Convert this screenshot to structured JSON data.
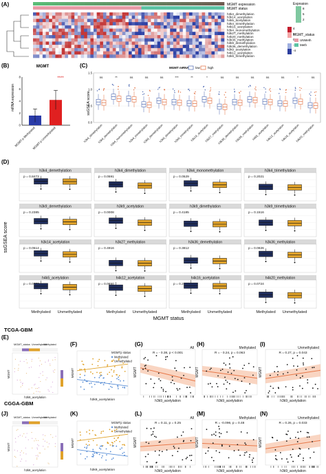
{
  "panel_letters": {
    "A": "(A)",
    "B": "(B)",
    "C": "(C)",
    "D": "(D)",
    "E": "(E)",
    "F": "(F)",
    "G": "(G)",
    "H": "(H)",
    "I": "(I)",
    "J": "(J)",
    "K": "(K)",
    "L": "(L)",
    "M": "(M)",
    "N": "(N)"
  },
  "section_labels": {
    "tcga": "TCGA-GBM",
    "cgga": "CGGA-GBM"
  },
  "colors": {
    "meth": "#1f2d5c",
    "unmeth": "#e0a22a",
    "low": "#4a66b0",
    "high": "#e06b3a",
    "teal": "#5cc3a4",
    "heat_hi": "#c41b2c",
    "heat_lo": "#2b3d9e",
    "red_bar": "#e02020",
    "blue_bar": "#2a3ba8",
    "scatter_pt": "#111111",
    "fit": "#e8794a",
    "fit_band": "#f6c3a8"
  },
  "heatmap": {
    "annotation_labels": [
      "MGMT expression",
      "MGMT status"
    ],
    "rows": [
      "h3k4_dimethylation",
      "h3k14_acetylation",
      "h4k5_acetylation",
      "h3k4_trimethylation",
      "h4k16_acetylation",
      "h3k4_monomethylation",
      "h3k27_methylation",
      "h4k20_methylation",
      "h3k36_methylation",
      "h3k9_demethylation",
      "h3k36_demethylation",
      "h3k9_acetylation",
      "h4k12_acetylation",
      "h3k9_trimethylation"
    ],
    "legend_expr_title": "Exprssion",
    "legend_expr_ticks": [
      "8",
      "5",
      "2"
    ],
    "legend_heat_ticks": [
      "4",
      "2",
      "0",
      "-2",
      "-4"
    ],
    "legend_status_title": "MGMT_status",
    "legend_status_items": [
      "UNMeth",
      "Meth"
    ]
  },
  "chart_data": [
    {
      "panel": "B",
      "type": "bar",
      "title": "MGMT",
      "ylabel": "mRNA expression",
      "categories": [
        "MGMT-p-Methylated",
        "MGMT-p-Unmethylated"
      ],
      "values": [
        1.6,
        4.2
      ],
      "errors": [
        1.1,
        1.6
      ],
      "ylim": [
        0,
        8
      ],
      "yticks": [
        "0",
        "2",
        "4",
        "6",
        "8"
      ],
      "significance": "****"
    },
    {
      "panel": "C",
      "type": "box",
      "ylabel": "ssGSEA score",
      "legend_title": "MGMT mRNA",
      "legend_items": [
        "low",
        "high"
      ],
      "categories": [
        "h3k4_dimethylation",
        "h3k4_demethylation",
        "h3k4_monomethylation",
        "h3k4_trimethylation",
        "h3k9_demethylation",
        "h3k9_dimethylation",
        "h3k9_trimethylation",
        "h3k14_acetylation",
        "h3k27_methylation",
        "h3k36_demethylation",
        "h3k36_methylation",
        "h4k5_acetylation",
        "h4k12_acetylation",
        "h4k16_acetylation",
        "h4k20_methylation"
      ],
      "significance": [
        "ns",
        "**",
        "ns",
        "ns",
        "ns",
        "***",
        "**",
        "*",
        "ns",
        "ns",
        "ns",
        "ns",
        "ns",
        "*",
        "ns"
      ],
      "ylim": [
        0.0,
        1.5
      ],
      "yticks": [
        "0.0",
        "0.5",
        "1.0",
        "1.5"
      ],
      "medians_low": [
        0.62,
        0.78,
        0.72,
        0.55,
        0.66,
        0.62,
        0.58,
        0.7,
        0.48,
        0.62,
        0.7,
        0.63,
        0.58,
        0.66,
        0.52
      ],
      "medians_high": [
        0.6,
        0.72,
        0.7,
        0.53,
        0.62,
        0.6,
        0.57,
        0.66,
        0.47,
        0.6,
        0.68,
        0.62,
        0.57,
        0.63,
        0.51
      ]
    },
    {
      "panel": "D",
      "type": "box",
      "ylabel": "ssGSEA score",
      "xlabel": "MGMT status",
      "categories": [
        "Methylated",
        "Unmethylated"
      ],
      "facets": [
        {
          "title": "h3k4_demethylation",
          "p": "p = 0.8473",
          "meth": 0.74,
          "unmeth": 0.73
        },
        {
          "title": "h3k4_dimethylation",
          "p": "p = 0.0591",
          "meth": 0.62,
          "unmeth": 0.57
        },
        {
          "title": "h3k4_monomethylation",
          "p": "p = 0.0529",
          "meth": 0.66,
          "unmeth": 0.6
        },
        {
          "title": "h3k4_trimethylation",
          "p": "p = 0.2021",
          "meth": 0.52,
          "unmeth": 0.5
        },
        {
          "title": "h3k9_demethylation",
          "p": "p = 0.2385",
          "meth": 0.58,
          "unmeth": 0.55
        },
        {
          "title": "h3k9_acetylation",
          "p": "p = 0.0008",
          "meth": 0.6,
          "unmeth": 0.52
        },
        {
          "title": "h3k9_dimethylation",
          "p": "p = 0.4185",
          "meth": 0.48,
          "unmeth": 0.46
        },
        {
          "title": "h3k9_trimethylation",
          "p": "p = 0.1516",
          "meth": 0.52,
          "unmeth": 0.5
        },
        {
          "title": "h3k14_acetylation",
          "p": "p = 0.0514",
          "meth": 0.72,
          "unmeth": 0.68
        },
        {
          "title": "h3k27_methylation",
          "p": "p = 0.4916",
          "meth": 0.34,
          "unmeth": 0.33
        },
        {
          "title": "h3k36_demethylation",
          "p": "p = 0.3812",
          "meth": 0.44,
          "unmeth": 0.42
        },
        {
          "title": "h3k36_methylation",
          "p": "p = 0.0826",
          "meth": 0.7,
          "unmeth": 0.66
        },
        {
          "title": "h4k5_acetylation",
          "p": "p = 0.0773",
          "meth": 0.84,
          "unmeth": 0.8
        },
        {
          "title": "h4k12_acetylation",
          "p": "p = 0.0650",
          "meth": 0.78,
          "unmeth": 0.74
        },
        {
          "title": "h4k16_acetylation",
          "p": "p = 0.2130",
          "meth": 0.86,
          "unmeth": 0.84
        },
        {
          "title": "h4k20_methylation",
          "p": "p = 0.0724",
          "meth": 0.5,
          "unmeth": 0.48
        }
      ]
    },
    {
      "panel": "G",
      "type": "scatter",
      "subtitle": "All",
      "stat": "R = - 0.38, p < 0.001",
      "xlabel": "h3k9_acetylation",
      "ylabel": "MGMT",
      "slope": -0.8
    },
    {
      "panel": "H",
      "type": "scatter",
      "subtitle": "Methylated",
      "stat": "R = - 0.24, p = 0.063",
      "xlabel": "h3k9_acetylation",
      "ylabel": "MGMT",
      "slope": -0.45
    },
    {
      "panel": "I",
      "type": "scatter",
      "subtitle": "Unmethylated",
      "stat": "R = 0.27, p = 0.043",
      "xlabel": "h3k9_acetylation",
      "ylabel": "MGMT",
      "slope": 0.5
    },
    {
      "panel": "L",
      "type": "scatter",
      "subtitle": "All",
      "stat": "R = 0.11, p = 0.25",
      "xlabel": "h3k9_acetylation",
      "ylabel": "MGMT",
      "slope": 0.25
    },
    {
      "panel": "M",
      "type": "scatter",
      "subtitle": "Methylated",
      "stat": "R = -0.096, p = 0.48",
      "xlabel": "h3k9_acetylation",
      "ylabel": "MGMT",
      "slope": -0.15
    },
    {
      "panel": "N",
      "type": "scatter",
      "subtitle": "Unmethylated",
      "stat": "R = 0.26, p = 0.033",
      "xlabel": "h3k9_acetylation",
      "ylabel": "MGMT",
      "slope": 0.5
    },
    {
      "panel": "F",
      "type": "scatter",
      "legend_title": "MGMTp status",
      "legend_items": [
        "Methylated",
        "Unmethylated"
      ],
      "xlabel": "h3k9_acetylation",
      "ylabel": "MGMT"
    },
    {
      "panel": "K",
      "type": "scatter",
      "legend_title": "MGMTp status",
      "legend_items": [
        "Methylated",
        "Unmethylated"
      ],
      "xlabel": "h3k9_acetylation",
      "ylabel": "MGMT"
    },
    {
      "panel": "E",
      "type": "scatter",
      "legend_title": "MGMT_status",
      "legend_items": [
        "Unmethylated",
        "Methylated"
      ],
      "xlabel": "h3k9_acetylation",
      "ylabel": "MGMT"
    },
    {
      "panel": "J",
      "type": "scatter",
      "legend_title": "MGMT_status",
      "legend_items": [
        "Unmethylated",
        "Methylated"
      ],
      "xlabel": "h3k9_acetylation",
      "ylabel": "MGMT"
    }
  ]
}
